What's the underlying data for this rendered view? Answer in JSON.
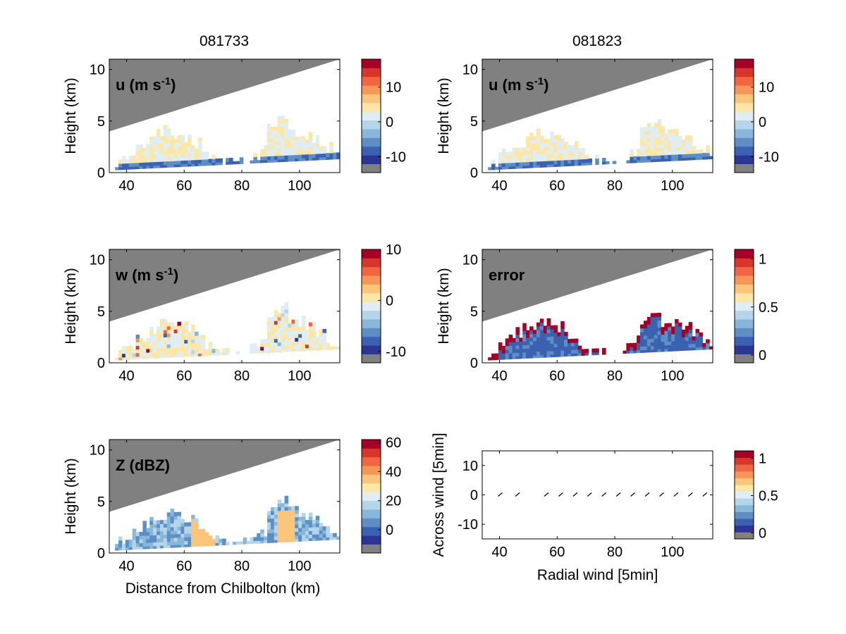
{
  "figure": {
    "column_titles": [
      "081733",
      "081823"
    ],
    "xlabel": "Distance from Chilbolton (km)",
    "ylabel": "Height (km)"
  },
  "colors": {
    "masked": "#808080",
    "colormap": [
      "#2b3595",
      "#3b62b0",
      "#5d8fc5",
      "#89b7d9",
      "#b4d6e8",
      "#dfeef5",
      "#fde7a6",
      "#fbc57b",
      "#f79656",
      "#ee6642",
      "#d8362b",
      "#a50026"
    ]
  },
  "chart_data": [
    {
      "type": "heatmap",
      "panel": "u-081733",
      "title": "u (m s",
      "title_sup": "-1",
      "x_ticks": [
        40,
        60,
        80,
        100
      ],
      "xlim": [
        34,
        114
      ],
      "y_ticks": [
        0,
        5,
        10
      ],
      "ylim": [
        0,
        11
      ],
      "colorbar": {
        "ticks": [
          10,
          0,
          -10
        ],
        "range": [
          -14.6,
          18
        ],
        "levels": 12
      }
    },
    {
      "type": "heatmap",
      "panel": "u-081823",
      "title": "u (m s",
      "title_sup": "-1",
      "x_ticks": [
        40,
        60,
        80,
        100
      ],
      "xlim": [
        34,
        114
      ],
      "y_ticks": [
        0,
        5,
        10
      ],
      "ylim": [
        0,
        11
      ],
      "colorbar": {
        "ticks": [
          10,
          0,
          -10
        ],
        "range": [
          -14.6,
          18
        ],
        "levels": 12
      }
    },
    {
      "type": "heatmap",
      "panel": "w-081733",
      "title": "w (m s",
      "title_sup": "-1",
      "x_ticks": [
        40,
        60,
        80,
        100
      ],
      "xlim": [
        34,
        114
      ],
      "y_ticks": [
        0,
        5,
        10
      ],
      "ylim": [
        0,
        11
      ],
      "colorbar": {
        "ticks": [
          10,
          0,
          -10
        ],
        "range": [
          -12.2,
          10
        ],
        "levels": 12
      }
    },
    {
      "type": "heatmap",
      "panel": "error-081823",
      "title": "error",
      "title_sup": "",
      "x_ticks": [
        40,
        60,
        80,
        100
      ],
      "xlim": [
        34,
        114
      ],
      "y_ticks": [
        0,
        5,
        10
      ],
      "ylim": [
        0,
        11
      ],
      "colorbar": {
        "ticks": [
          1,
          0.5,
          0
        ],
        "range": [
          -0.08,
          1.1
        ],
        "levels": 12
      }
    },
    {
      "type": "heatmap",
      "panel": "Z-081733",
      "title": "Z (dBZ)",
      "title_sup": "",
      "x_ticks": [
        40,
        60,
        80,
        100
      ],
      "xlim": [
        34,
        114
      ],
      "y_ticks": [
        0,
        5,
        10
      ],
      "ylim": [
        0,
        11
      ],
      "colorbar": {
        "ticks": [
          60,
          40,
          20,
          0
        ],
        "range": [
          -16,
          62
        ],
        "levels": 12
      }
    },
    {
      "type": "scatter",
      "panel": "wind-vectors",
      "xlabel": "Radial wind [5min]",
      "ylabel": "Across wind [5min]",
      "x_ticks": [
        40,
        60,
        80,
        100
      ],
      "xlim": [
        34,
        114
      ],
      "y_ticks": [
        10,
        0,
        -10
      ],
      "ylim": [
        -15,
        15
      ],
      "x": [
        40,
        46,
        56,
        61,
        66,
        71,
        76,
        81,
        86,
        91,
        96,
        101,
        106,
        111
      ],
      "y": [
        0,
        0,
        0,
        0,
        0,
        0,
        0,
        0,
        0,
        0,
        0,
        0,
        0,
        0
      ],
      "colorbar": {
        "ticks": [
          1,
          0.5,
          0
        ],
        "range": [
          -0.08,
          1.1
        ],
        "levels": 12
      }
    }
  ]
}
